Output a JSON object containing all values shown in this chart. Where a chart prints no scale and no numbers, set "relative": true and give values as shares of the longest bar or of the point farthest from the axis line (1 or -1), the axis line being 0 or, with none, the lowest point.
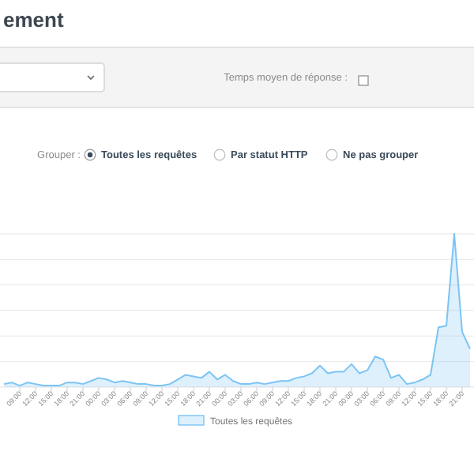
{
  "chart_data": {
    "type": "area",
    "title": "ement",
    "relative": true,
    "grid": "y",
    "legend": "bottom",
    "annotations": [
      "Temps moyen de réponse :",
      "Grouper :",
      "Toutes les requêtes",
      "Par statut HTTP",
      "Ne pas grouper"
    ],
    "categories": [
      null,
      null,
      "09:00",
      null,
      "12:00",
      null,
      "15:00",
      null,
      "18:00",
      null,
      "21:00",
      null,
      "00:00",
      null,
      "03:00",
      null,
      "06:00",
      null,
      "09:00",
      null,
      "12:00",
      null,
      "15:00",
      null,
      "18:00",
      null,
      "21:00",
      null,
      "00:00",
      null,
      "03:00",
      null,
      "06:00",
      null,
      "09:00",
      null,
      "12:00",
      null,
      "15:00",
      null,
      "18:00",
      null,
      "21:00",
      null,
      "00:00",
      null,
      "03:00",
      null,
      "06:00",
      null,
      "09:00",
      null,
      "12:00",
      null,
      "15:00",
      null,
      "18:00",
      null,
      "21:00",
      null
    ],
    "series": [
      {
        "name": "Toutes les requêtes",
        "color": "#7cc4f4",
        "values": [
          0.02,
          0.03,
          0.01,
          0.03,
          0.02,
          0.01,
          0.01,
          0.01,
          0.03,
          0.03,
          0.02,
          0.04,
          0.06,
          0.05,
          0.03,
          0.04,
          0.03,
          0.02,
          0.02,
          0.01,
          0.01,
          0.02,
          0.05,
          0.08,
          0.07,
          0.06,
          0.1,
          0.05,
          0.08,
          0.04,
          0.02,
          0.02,
          0.03,
          0.02,
          0.03,
          0.04,
          0.04,
          0.06,
          0.07,
          0.09,
          0.14,
          0.09,
          0.1,
          0.1,
          0.15,
          0.09,
          0.11,
          0.2,
          0.18,
          0.06,
          0.08,
          0.02,
          0.03,
          0.05,
          0.08,
          0.39,
          0.4,
          1,
          0.36,
          0.25
        ]
      }
    ]
  }
}
